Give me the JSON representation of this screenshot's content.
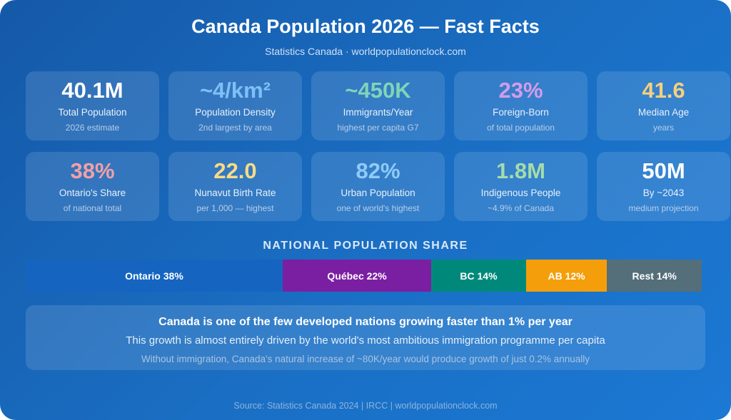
{
  "title": "Canada Population 2026 — Fast Facts",
  "subtitle": "Statistics Canada · worldpopulationclock.com",
  "cards": [
    {
      "value": "40.1M",
      "label": "Total Population",
      "sub": "2026 estimate",
      "color": "#ffffff"
    },
    {
      "value": "~4/km²",
      "label": "Population Density",
      "sub": "2nd largest by area",
      "color": "#7ec0f7"
    },
    {
      "value": "~450K",
      "label": "Immigrants/Year",
      "sub": "highest per capita G7",
      "color": "#7fd4b8"
    },
    {
      "value": "23%",
      "label": "Foreign-Born",
      "sub": "of total population",
      "color": "#d59be8"
    },
    {
      "value": "41.6",
      "label": "Median Age",
      "sub": "years",
      "color": "#f7cf7e"
    },
    {
      "value": "38%",
      "label": "Ontario's Share",
      "sub": "of national total",
      "color": "#f2a0a6"
    },
    {
      "value": "22.0",
      "label": "Nunavut Birth Rate",
      "sub": "per 1,000 — highest",
      "color": "#f8dc84"
    },
    {
      "value": "82%",
      "label": "Urban Population",
      "sub": "one of world's highest",
      "color": "#8fcbf7"
    },
    {
      "value": "1.8M",
      "label": "Indigenous People",
      "sub": "~4.9% of Canada",
      "color": "#a4dcaa"
    },
    {
      "value": "50M",
      "label": "By ~2043",
      "sub": "medium projection",
      "color": "#ffffff"
    }
  ],
  "share": {
    "heading": "NATIONAL POPULATION SHARE",
    "segments": [
      {
        "label": "Ontario 38%",
        "value": 38,
        "color": "#1565c0"
      },
      {
        "label": "Québec 22%",
        "value": 22,
        "color": "#7b1fa2"
      },
      {
        "label": "BC 14%",
        "value": 14,
        "color": "#00897b"
      },
      {
        "label": "AB 12%",
        "value": 12,
        "color": "#f59e0b"
      },
      {
        "label": "Rest 14%",
        "value": 14,
        "color": "#546e7a"
      }
    ]
  },
  "note": {
    "line1": "Canada is one of the few developed nations growing faster than 1% per year",
    "line2": "This growth is almost entirely driven by the world's most ambitious immigration programme per capita",
    "line3": "Without immigration, Canada's natural increase of ~80K/year would produce growth of just 0.2% annually"
  },
  "source": "Source: Statistics Canada 2024 | IRCC | worldpopulationclock.com"
}
